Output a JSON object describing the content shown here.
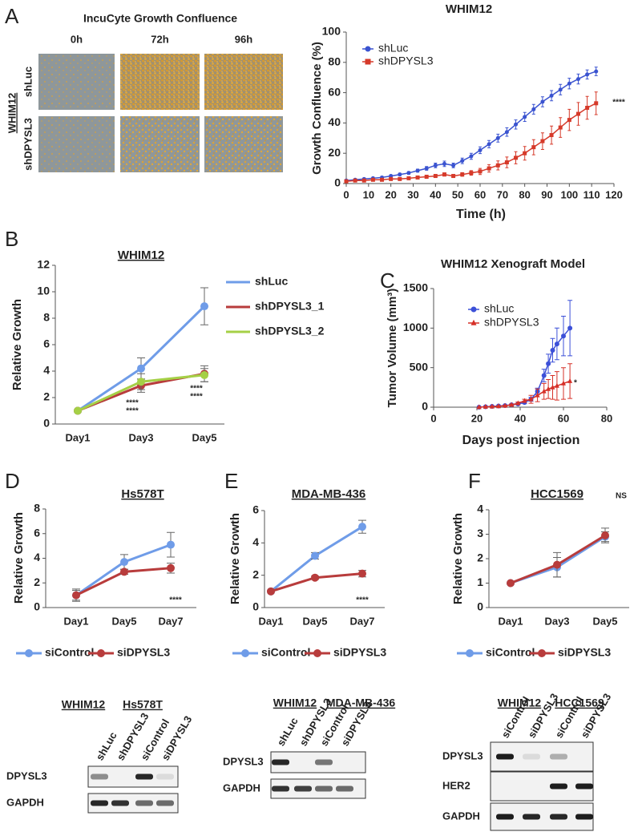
{
  "figure": {
    "panel_labels": [
      "A",
      "B",
      "C",
      "D",
      "E",
      "F"
    ],
    "micrographs": {
      "title": "IncuCyte Growth Confluence",
      "columns": [
        "0h",
        "72h",
        "96h"
      ],
      "rows": [
        "shLuc",
        "shDPYSL3"
      ],
      "group": "WHIM12"
    },
    "blots": [
      {
        "headers": [
          "WHIM12",
          "Hs578T"
        ],
        "lanes": [
          "shLuc",
          "shDPYSL3",
          "siControl",
          "siDPYSL3"
        ],
        "rows": [
          "DPYSL3",
          "GAPDH"
        ]
      },
      {
        "headers": [
          "WHIM12",
          "MDA-MB-436"
        ],
        "lanes": [
          "shLuc",
          "shDPYSL3",
          "siControl",
          "siDPYSL3"
        ],
        "rows": [
          "DPYSL3",
          "GAPDH"
        ]
      },
      {
        "headers": [
          "WHIM12",
          "HCC1569"
        ],
        "lanes": [
          "siControl",
          "siDPYSL3",
          "siControl",
          "siDPYSL3"
        ],
        "rows": [
          "DPYSL3",
          "HER2",
          "GAPDH"
        ]
      }
    ]
  },
  "chart_data": [
    {
      "type": "line",
      "title": "WHIM12",
      "x_label": "Time (h)",
      "y_label": "Growth Confluence (%)",
      "x": [
        0,
        4,
        8,
        12,
        16,
        20,
        24,
        28,
        32,
        36,
        40,
        44,
        48,
        52,
        56,
        60,
        64,
        68,
        72,
        76,
        80,
        84,
        88,
        92,
        96,
        100,
        104,
        108,
        112
      ],
      "series": [
        {
          "name": "shLuc",
          "color": "#3a53d0",
          "marker": "circle",
          "values": [
            2,
            2.5,
            3,
            3.5,
            4,
            5,
            6,
            7,
            8.5,
            10,
            12,
            13,
            12,
            15,
            18,
            22,
            26,
            30,
            34,
            39,
            44,
            49,
            54,
            58,
            62,
            66,
            69,
            72,
            74
          ],
          "errors": [
            0.5,
            0.5,
            0.5,
            0.6,
            0.6,
            0.7,
            0.8,
            0.9,
            1,
            1.2,
            1.5,
            1.8,
            1.5,
            1.8,
            2,
            2.2,
            2.4,
            2.6,
            2.8,
            3,
            3,
            3.2,
            3.3,
            3.4,
            3.5,
            3.5,
            3.3,
            3,
            2.8
          ]
        },
        {
          "name": "shDPYSL3",
          "color": "#d63a2a",
          "marker": "square",
          "values": [
            1.5,
            2,
            2,
            2.5,
            2.5,
            3,
            3,
            3.5,
            4,
            4.5,
            5,
            6,
            5,
            6,
            7,
            8,
            10,
            12,
            14,
            17,
            20,
            24,
            28,
            32,
            37,
            42,
            46,
            50,
            53
          ],
          "errors": [
            0.3,
            0.3,
            0.4,
            0.4,
            0.5,
            0.5,
            0.5,
            0.6,
            0.7,
            0.8,
            0.9,
            1,
            1,
            1.2,
            1.5,
            2,
            2.5,
            3,
            3.5,
            4,
            4.5,
            5,
            5.5,
            6,
            6.5,
            7,
            7.5,
            7.5,
            7.5
          ]
        }
      ],
      "xlim": [
        0,
        120
      ],
      "xticks": [
        0,
        10,
        20,
        30,
        40,
        50,
        60,
        70,
        80,
        90,
        100,
        110,
        120
      ],
      "ylim": [
        0,
        100
      ],
      "yticks": [
        0,
        20,
        40,
        60,
        80,
        100
      ],
      "legend": "upper left",
      "annotations": [
        "****"
      ]
    },
    {
      "type": "line",
      "title": "WHIM12",
      "y_label": "Relative Growth",
      "categories": [
        "Day1",
        "Day3",
        "Day5"
      ],
      "series": [
        {
          "name": "shLuc",
          "color": "#6f9ce8",
          "marker": "circle",
          "values": [
            1,
            4.2,
            8.9
          ],
          "errors": [
            0,
            0.8,
            1.4
          ]
        },
        {
          "name": "shDPYSL3_1",
          "color": "#b83c3c",
          "marker": "circle",
          "values": [
            1,
            2.9,
            3.8
          ],
          "errors": [
            0,
            0.5,
            0.6
          ]
        },
        {
          "name": "shDPYSL3_2",
          "color": "#a5d046",
          "marker": "circle",
          "values": [
            1,
            3.2,
            3.7
          ],
          "errors": [
            0,
            0.6,
            0.5
          ]
        }
      ],
      "ylim": [
        0,
        12
      ],
      "yticks": [
        0,
        2,
        4,
        6,
        8,
        10,
        12
      ],
      "legend": "right",
      "annotations": [
        "****",
        "****",
        "****",
        "****"
      ]
    },
    {
      "type": "line",
      "title": "WHIM12 Xenograft Model",
      "x_label": "Days post injection",
      "y_label": "Tumor Volume (mm³)",
      "x": [
        21,
        24,
        27,
        30,
        33,
        36,
        39,
        42,
        45,
        48,
        51,
        53,
        55,
        57,
        60,
        63
      ],
      "series": [
        {
          "name": "shLuc",
          "color": "#3c50d8",
          "marker": "circle",
          "values": [
            0,
            5,
            10,
            15,
            20,
            30,
            40,
            60,
            100,
            200,
            400,
            550,
            720,
            800,
            900,
            1000
          ],
          "errors": [
            0,
            2,
            3,
            4,
            5,
            8,
            10,
            15,
            25,
            40,
            80,
            120,
            150,
            200,
            250,
            350
          ]
        },
        {
          "name": "shDPYSL3",
          "color": "#d63028",
          "marker": "triangle",
          "values": [
            0,
            5,
            8,
            12,
            18,
            30,
            50,
            80,
            100,
            150,
            200,
            230,
            250,
            270,
            300,
            330
          ],
          "errors": [
            0,
            2,
            3,
            4,
            5,
            10,
            15,
            20,
            50,
            80,
            100,
            120,
            150,
            180,
            200,
            220
          ]
        }
      ],
      "xlim": [
        0,
        80
      ],
      "xticks": [
        0,
        20,
        40,
        60,
        80
      ],
      "ylim": [
        0,
        1500
      ],
      "yticks": [
        0,
        500,
        1000,
        1500
      ],
      "legend": "upper left",
      "annotations": [
        "*"
      ]
    },
    {
      "type": "line",
      "title": "Hs578T",
      "y_label": "Relative Growth",
      "categories": [
        "Day1",
        "Day5",
        "Day7"
      ],
      "series": [
        {
          "name": "siControl",
          "color": "#6f9ce8",
          "marker": "circle",
          "values": [
            1,
            3.7,
            5.1
          ],
          "errors": [
            0.5,
            0.6,
            1.0
          ]
        },
        {
          "name": "siDPYSL3",
          "color": "#b83c3c",
          "marker": "circle",
          "values": [
            1,
            2.9,
            3.2
          ],
          "errors": [
            0.4,
            0.2,
            0.4
          ]
        }
      ],
      "ylim": [
        0,
        8
      ],
      "yticks": [
        0,
        2,
        4,
        6,
        8
      ],
      "legend": "bottom",
      "annotations": [
        "****"
      ]
    },
    {
      "type": "line",
      "title": "MDA-MB-436",
      "y_label": "Relative Growth",
      "categories": [
        "Day1",
        "Day5",
        "Day7"
      ],
      "series": [
        {
          "name": "siControl",
          "color": "#6f9ce8",
          "marker": "circle",
          "values": [
            1,
            3.2,
            5.0
          ],
          "errors": [
            0,
            0.2,
            0.4
          ]
        },
        {
          "name": "siDPYSL3",
          "color": "#b83c3c",
          "marker": "circle",
          "values": [
            1,
            1.85,
            2.1
          ],
          "errors": [
            0,
            0.1,
            0.2
          ]
        }
      ],
      "ylim": [
        0,
        6
      ],
      "yticks": [
        0,
        2,
        4,
        6
      ],
      "legend": "bottom",
      "annotations": [
        "****"
      ]
    },
    {
      "type": "line",
      "title": "HCC1569",
      "y_label": "Relative Growth",
      "categories": [
        "Day1",
        "Day3",
        "Day5"
      ],
      "series": [
        {
          "name": "siControl",
          "color": "#6f9ce8",
          "marker": "circle",
          "values": [
            1,
            1.65,
            2.9
          ],
          "errors": [
            0,
            0.4,
            0.2
          ]
        },
        {
          "name": "siDPYSL3",
          "color": "#b83c3c",
          "marker": "circle",
          "values": [
            1,
            1.75,
            2.95
          ],
          "errors": [
            0,
            0.5,
            0.3
          ]
        }
      ],
      "ylim": [
        0,
        4
      ],
      "yticks": [
        0,
        1,
        2,
        3,
        4
      ],
      "legend": "bottom",
      "annotations": [
        "NS"
      ]
    }
  ]
}
